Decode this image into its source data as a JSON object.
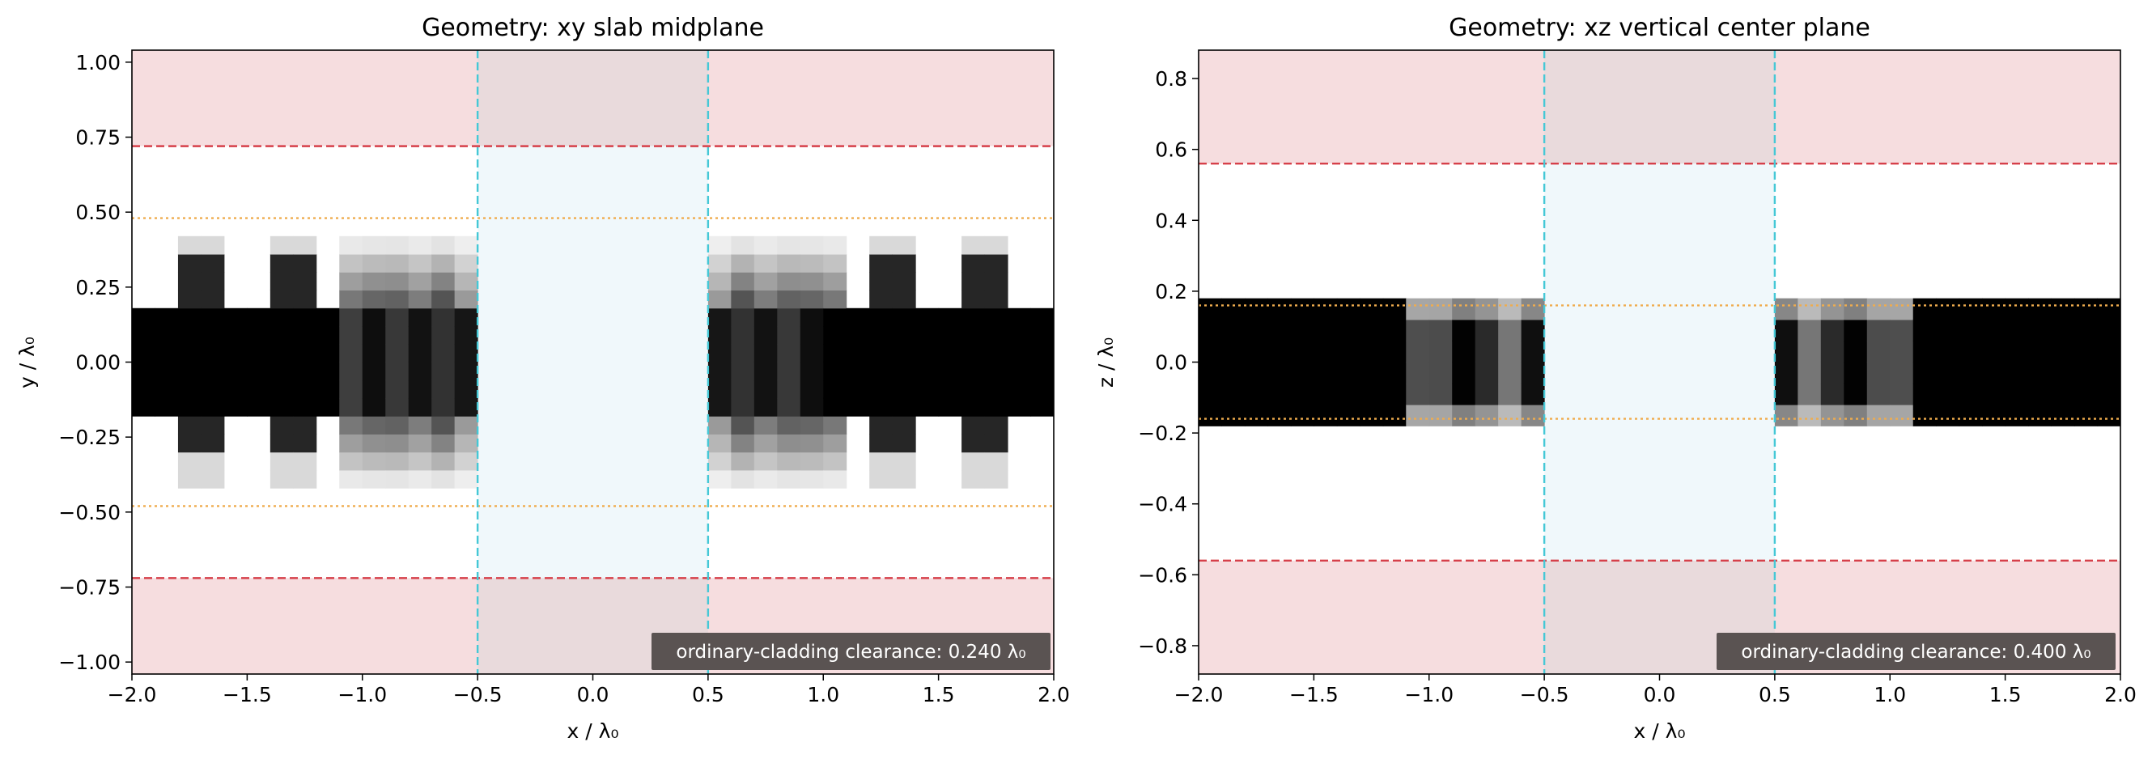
{
  "chart_data": [
    {
      "type": "heatmap",
      "title": "Geometry: xy slab midplane",
      "xlabel": "x / λ₀",
      "ylabel": "y / λ₀",
      "xlim": [
        -2.0,
        2.0
      ],
      "ylim": [
        -1.04,
        1.04
      ],
      "x_ticks": [
        -2.0,
        -1.5,
        -1.0,
        -0.5,
        0.0,
        0.5,
        1.0,
        1.5,
        2.0
      ],
      "x_tick_labels": [
        "−2.0",
        "−1.5",
        "−1.0",
        "−0.5",
        "0.0",
        "0.5",
        "1.0",
        "1.5",
        "2.0"
      ],
      "y_ticks": [
        -1.0,
        -0.75,
        -0.5,
        -0.25,
        0.0,
        0.25,
        0.5,
        0.75,
        1.0
      ],
      "y_tick_labels": [
        "−1.00",
        "−0.75",
        "−0.50",
        "−0.25",
        "0.00",
        "0.25",
        "0.50",
        "0.75",
        "1.00"
      ],
      "pml_y": 0.72,
      "core_bound_y": 0.48,
      "gap_x": [
        -0.5,
        0.5
      ],
      "annotation": "ordinary-cladding clearance: 0.240 λ₀",
      "colors": {
        "pml_fill": "#f6dddf",
        "gap_fill": "#f0f8fb",
        "gap_pml_fill": "#e9dadc",
        "red_dashed": "#d6404a",
        "cyan_dashed": "#45c8d6",
        "orange_dotted": "#efac4e",
        "annotation_bg": "#5a5352"
      }
    },
    {
      "type": "heatmap",
      "title": "Geometry: xz vertical center plane",
      "xlabel": "x / λ₀",
      "ylabel": "z / λ₀",
      "xlim": [
        -2.0,
        2.0
      ],
      "ylim": [
        -0.88,
        0.88
      ],
      "x_ticks": [
        -2.0,
        -1.5,
        -1.0,
        -0.5,
        0.0,
        0.5,
        1.0,
        1.5,
        2.0
      ],
      "x_tick_labels": [
        "−2.0",
        "−1.5",
        "−1.0",
        "−0.5",
        "0.0",
        "0.5",
        "1.0",
        "1.5",
        "2.0"
      ],
      "y_ticks": [
        -0.8,
        -0.6,
        -0.4,
        -0.2,
        0.0,
        0.2,
        0.4,
        0.6,
        0.8
      ],
      "y_tick_labels": [
        "−0.8",
        "−0.6",
        "−0.4",
        "−0.2",
        "0.0",
        "0.2",
        "0.4",
        "0.6",
        "0.8"
      ],
      "pml_y": 0.56,
      "core_bound_y": 0.16,
      "gap_x": [
        -0.5,
        0.5
      ],
      "annotation": "ordinary-cladding clearance: 0.400 λ₀",
      "colors": {
        "pml_fill": "#f6dddf",
        "gap_fill": "#f0f8fb",
        "gap_pml_fill": "#e9dadc",
        "red_dashed": "#d6404a",
        "cyan_dashed": "#45c8d6",
        "orange_dotted": "#efac4e",
        "annotation_bg": "#5a5352"
      }
    }
  ]
}
